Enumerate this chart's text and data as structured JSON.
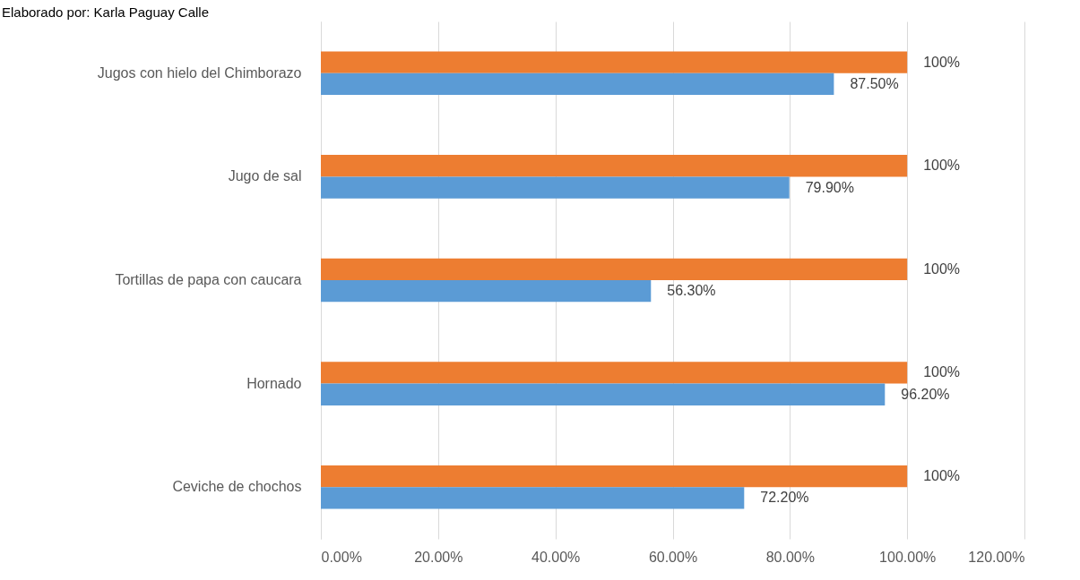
{
  "chart_data": {
    "type": "bar",
    "orientation": "horizontal",
    "annotations": [
      "Elaborado por: Karla Paguay Calle"
    ],
    "categories": [
      "Jugos con hielo del Chimborazo",
      "Jugo de sal",
      "Tortillas de papa con caucara",
      "Hornado",
      "Ceviche de chochos"
    ],
    "series": [
      {
        "color": "#ed7d31",
        "values": [
          100,
          100,
          100,
          100,
          100
        ],
        "value_labels": [
          "100%",
          "100%",
          "100%",
          "100%",
          "100%"
        ]
      },
      {
        "color": "#5b9bd5",
        "values": [
          87.5,
          79.9,
          56.3,
          96.2,
          72.2
        ],
        "value_labels": [
          "87.50%",
          "79.90%",
          "56.30%",
          "96.20%",
          "72.20%"
        ]
      }
    ],
    "xlim": [
      0,
      120
    ],
    "xticks": [
      {
        "value": 0,
        "label": "0.00%"
      },
      {
        "value": 20,
        "label": "20.00%"
      },
      {
        "value": 40,
        "label": "40.00%"
      },
      {
        "value": 60,
        "label": "60.00%"
      },
      {
        "value": 80,
        "label": "80.00%"
      },
      {
        "value": 100,
        "label": "100.00%"
      },
      {
        "value": 120,
        "label": "120.00%"
      }
    ],
    "grid": "x",
    "legend": false
  }
}
